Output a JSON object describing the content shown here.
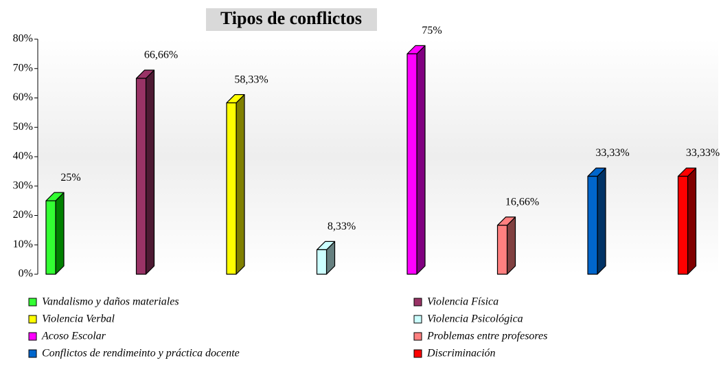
{
  "chart_data": {
    "type": "bar3d",
    "title": "Tipos de conflictos",
    "categories": [
      "Vandalismo y daños materiales",
      "Violencia Física",
      "Violencia Verbal",
      "Violencia Psicológica",
      "Acoso Escolar",
      "Problemas entre profesores",
      "Conflictos de rendimeinto y práctica docente",
      "Discriminación"
    ],
    "values": [
      25,
      66.66,
      58.33,
      8.33,
      75,
      16.66,
      33.33,
      33.33
    ],
    "value_labels": [
      "25%",
      "66,66%",
      "58,33%",
      "8,33%",
      "75%",
      "16,66%",
      "33,33%",
      "33,33%"
    ],
    "colors": [
      "#33ff33",
      "#993366",
      "#ffff00",
      "#ccffff",
      "#ff00ff",
      "#ff8080",
      "#0066cc",
      "#ff0000"
    ],
    "side_colors": [
      "#008000",
      "#4d1a33",
      "#808000",
      "#668080",
      "#800080",
      "#804040",
      "#003366",
      "#800000"
    ],
    "ylim": [
      0,
      80
    ],
    "yticks": [
      {
        "value": 0,
        "label": "0%"
      },
      {
        "value": 10,
        "label": "10%"
      },
      {
        "value": 20,
        "label": "20%"
      },
      {
        "value": 30,
        "label": "30%"
      },
      {
        "value": 40,
        "label": "40%"
      },
      {
        "value": 50,
        "label": "50%"
      },
      {
        "value": 60,
        "label": "60%"
      },
      {
        "value": 70,
        "label": "70%"
      },
      {
        "value": 80,
        "label": "80%"
      }
    ],
    "legend": "bottom"
  }
}
